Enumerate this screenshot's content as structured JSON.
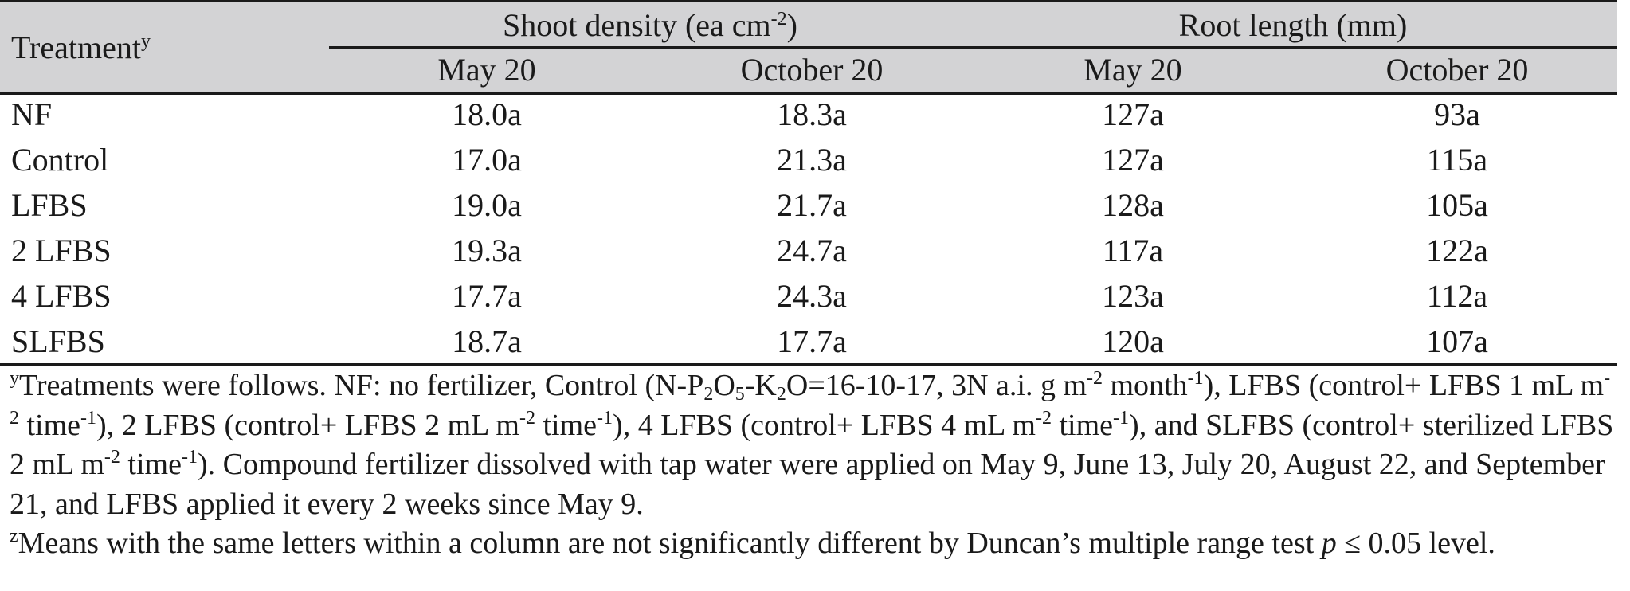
{
  "table": {
    "treatment_header": "Treatment",
    "treatment_header_superscript": "y",
    "groups": [
      {
        "label": "Shoot density (ea cm",
        "superscript": "-2",
        "suffix": ")"
      },
      {
        "label": "Root length (mm)",
        "superscript": "",
        "suffix": ""
      }
    ],
    "subheaders": [
      "May 20",
      "October 20",
      "May 20",
      "October 20"
    ],
    "rows": [
      {
        "treatment": "NF",
        "values": [
          "18.0a",
          "18.3a",
          "127a",
          "93a"
        ]
      },
      {
        "treatment": "Control",
        "values": [
          "17.0a",
          "21.3a",
          "127a",
          "115a"
        ]
      },
      {
        "treatment": "LFBS",
        "values": [
          "19.0a",
          "21.7a",
          "128a",
          "105a"
        ]
      },
      {
        "treatment": "2 LFBS",
        "values": [
          "19.3a",
          "24.7a",
          "117a",
          "122a"
        ]
      },
      {
        "treatment": "4 LFBS",
        "values": [
          "17.7a",
          "24.3a",
          "123a",
          "112a"
        ]
      },
      {
        "treatment": "SLFBS",
        "values": [
          "18.7a",
          "17.7a",
          "120a",
          "107a"
        ]
      }
    ]
  },
  "footnotes": {
    "y_marker": "y",
    "y_part1": "Treatments were follows. NF: no fertilizer, Control (N-P",
    "y_sub_2": "2",
    "y_O": "O",
    "y_sub_5": "5",
    "y_K": "-K",
    "y_sub_2b": "2",
    "y_part2": "O=16-10-17, 3N a.i. g m",
    "y_sup_m2a": "-2",
    "y_month": " month",
    "y_sup_m1a": "-1",
    "y_part3": "), LFBS (control+ LFBS 1 mL m",
    "y_sup_m2b": "-2",
    "y_time1": " time",
    "y_sup_m1b": "-1",
    "y_part4": "), 2 LFBS (control+ LFBS 2 mL m",
    "y_sup_m2c": "-2",
    "y_time2": " time",
    "y_sup_m1c": "-1",
    "y_part5": "), 4 LFBS (control+ LFBS 4 mL m",
    "y_sup_m2d": "-2",
    "y_time3": " time",
    "y_sup_m1d": "-1",
    "y_part6": "), and SLFBS (control+ sterilized LFBS 2 mL m",
    "y_sup_m2e": "-2",
    "y_time4": " time",
    "y_sup_m1e": "-1",
    "y_part7": "). Compound fertilizer dissolved with tap water were applied on May 9, June 13, July 20, August 22, and September 21, and LFBS applied it every 2 weeks since May 9.",
    "z_marker": "z",
    "z_text": "Means with the same letters within a column are not significantly different by Duncan’s multiple range test ",
    "z_p": "p",
    "z_end": " ≤ 0.05 level."
  }
}
